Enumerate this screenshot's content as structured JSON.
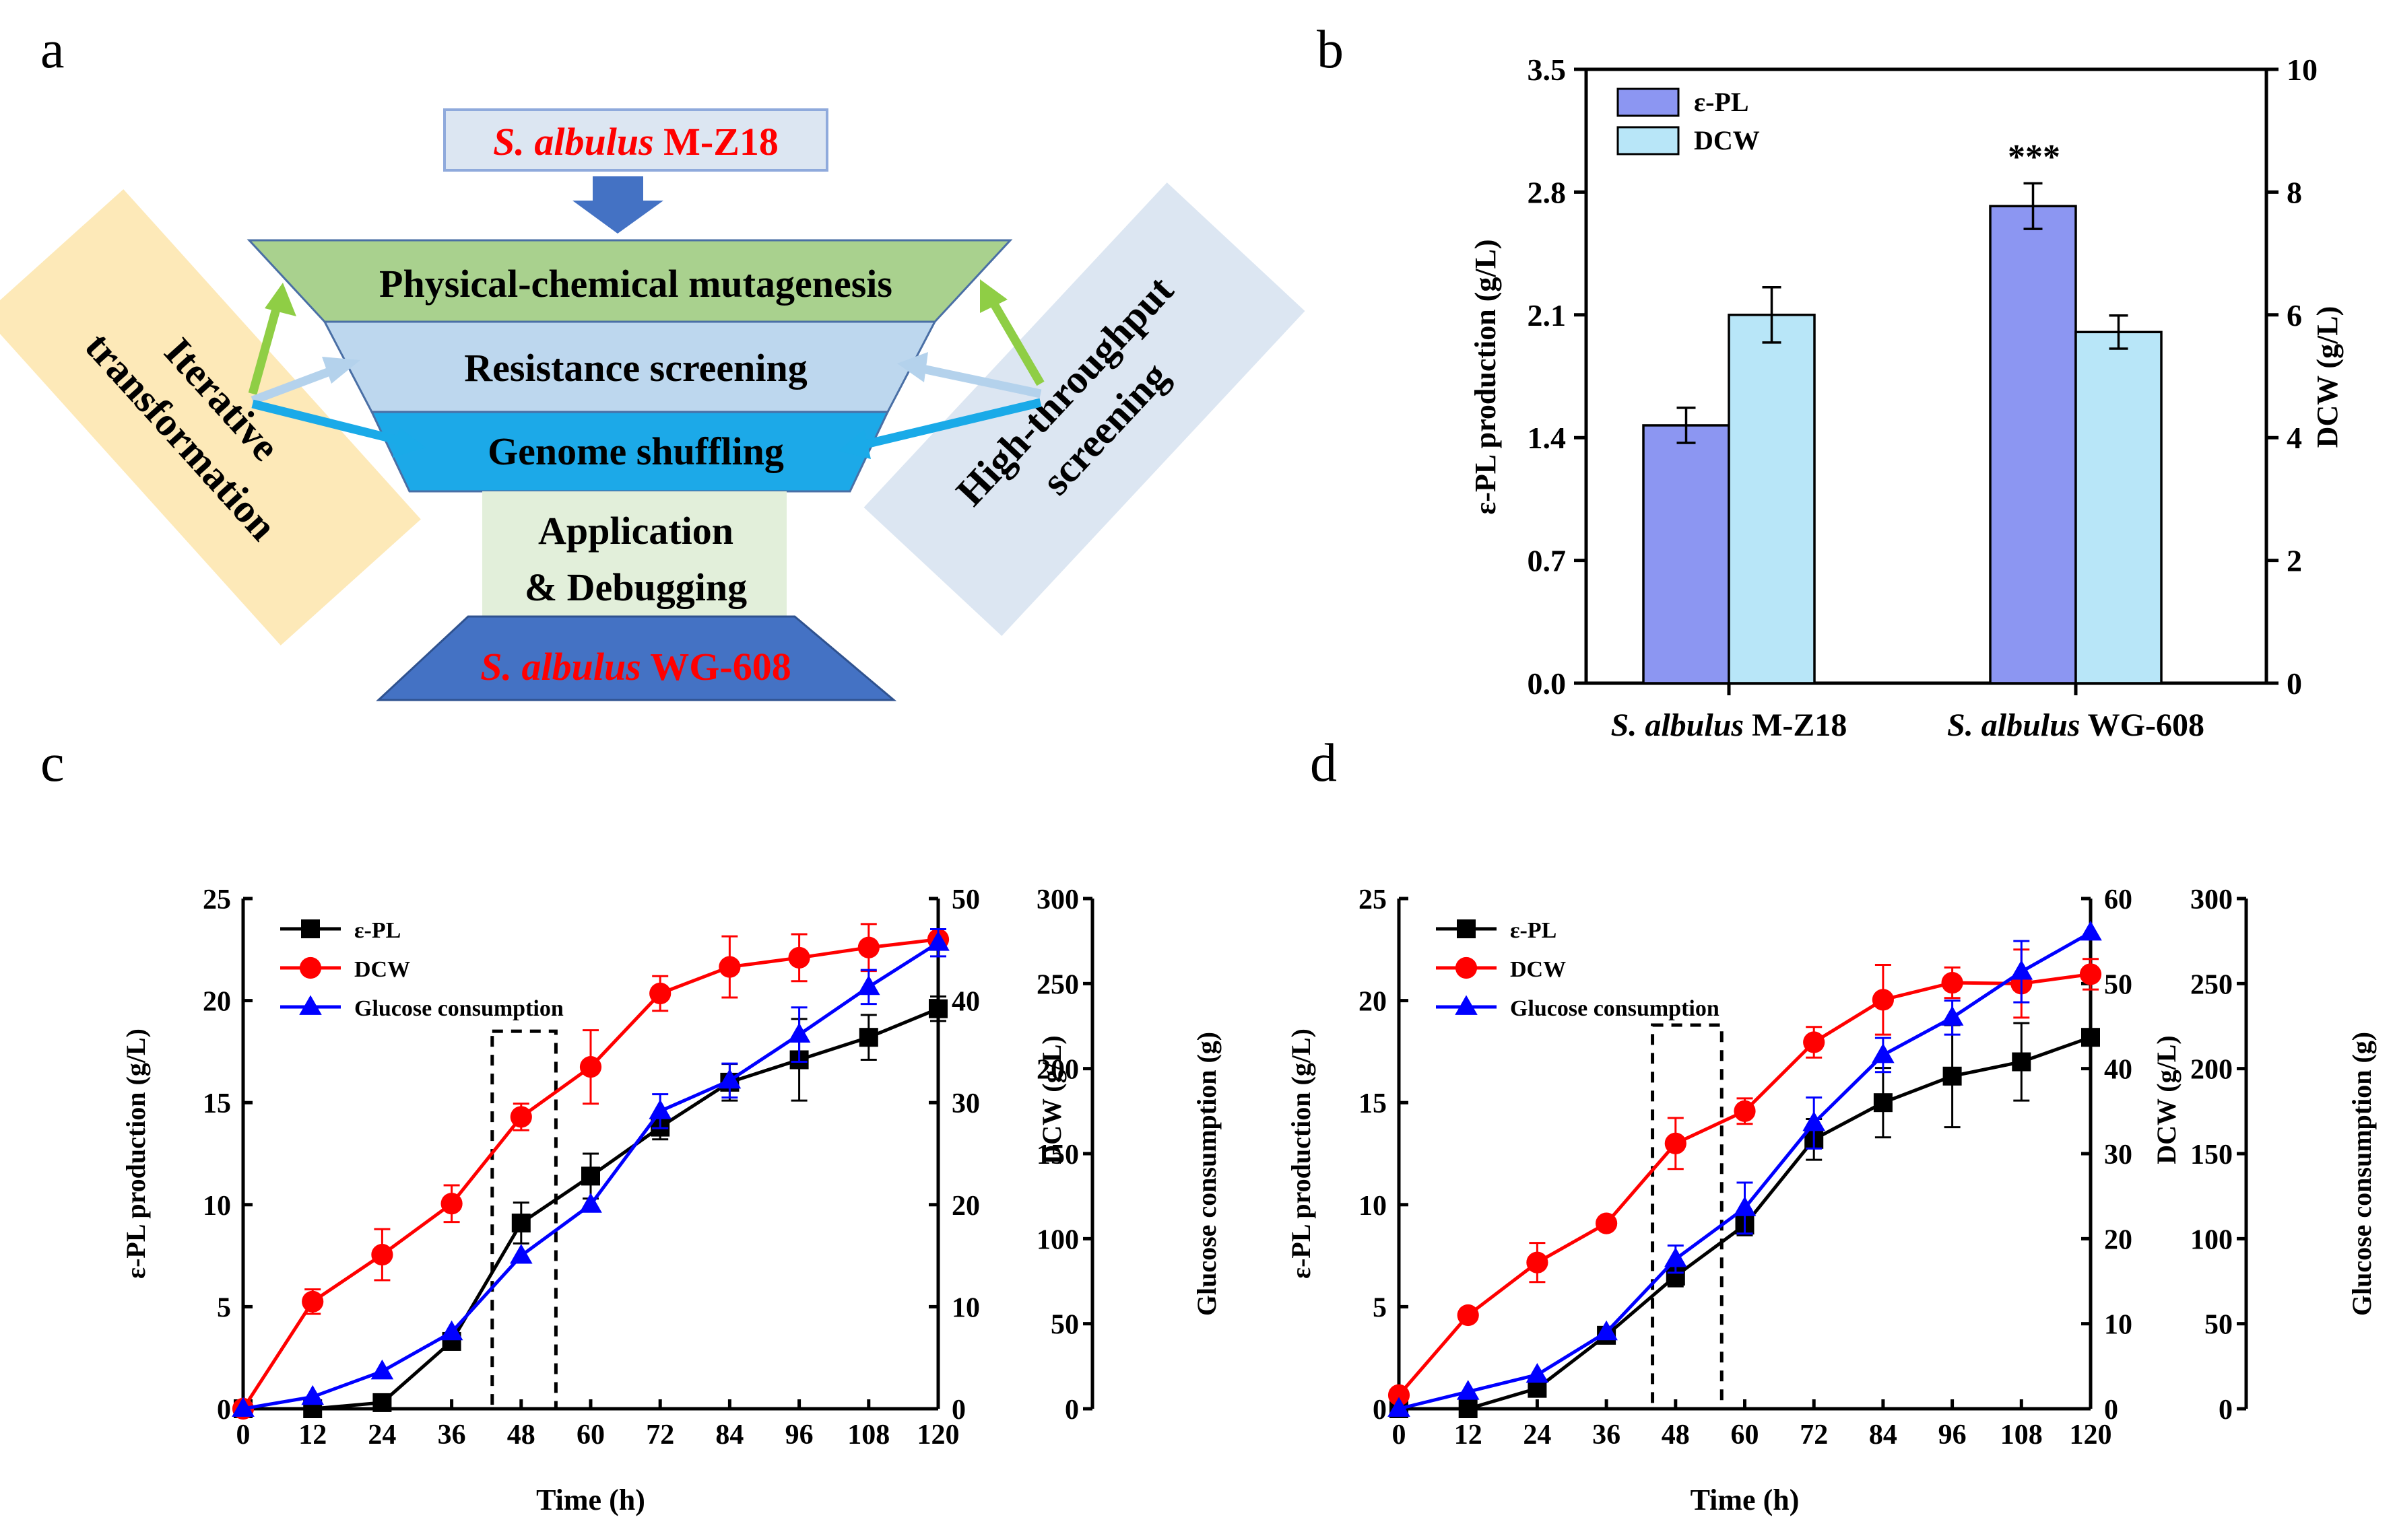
{
  "panels": {
    "a": {
      "letter": "a",
      "top_box": {
        "italic": "S. albulus",
        "rest": " M-Z18"
      },
      "levels": [
        "Physical-chemical mutagenesis",
        "Resistance screening",
        "Genome shuffling",
        "Application",
        "& Debugging"
      ],
      "bottom_box": {
        "italic": "S. albulus",
        "rest": " WG-608"
      },
      "left_note": [
        "Iterative",
        "transformation"
      ],
      "right_note": [
        "High-throughput",
        "screening"
      ],
      "colors": {
        "strain_red": "#ff0000",
        "level1": "#a9d18e",
        "level2": "#bdd7ee",
        "level3": "#1ca9e8",
        "level4": "#e2efda",
        "level5": "#4472c4",
        "left_note_bg": "#fde9b8",
        "right_note_bg": "#dce6f2",
        "arrow_green": "#8fce45",
        "arrow_lightblue": "#b4d2ec",
        "arrow_cyan": "#1aaae8",
        "arrow_down": "#4472c4"
      }
    },
    "b": {
      "letter": "b"
    },
    "c": {
      "letter": "c"
    },
    "d": {
      "letter": "d"
    }
  },
  "chart_data": [
    {
      "panel": "b",
      "type": "bar",
      "categories": [
        {
          "italic": "S. albulus",
          "rest": " M-Z18"
        },
        {
          "italic": "S. albulus",
          "rest": " WG-608"
        }
      ],
      "series": [
        {
          "name": "ε-PL",
          "axis": "left",
          "color": "#8c96f2",
          "values": [
            1.47,
            2.72
          ],
          "errors": [
            0.1,
            0.13
          ]
        },
        {
          "name": "DCW",
          "axis": "right",
          "color": "#b8e6f8",
          "values": [
            6.0,
            5.72
          ],
          "errors": [
            0.45,
            0.27
          ]
        }
      ],
      "ylabel": "ε-PL production (g/L)",
      "ylabel_right": "DCW (g/L)",
      "ylim": [
        0,
        3.5
      ],
      "ylim_right": [
        0,
        10
      ],
      "yticks": [
        "0.0",
        "0.7",
        "1.4",
        "2.1",
        "2.8",
        "3.5"
      ],
      "yticks_right": [
        "0",
        "2",
        "4",
        "6",
        "8",
        "10"
      ],
      "annotation": "***",
      "legend": "top-left"
    },
    {
      "panel": "c",
      "type": "line",
      "xlabel": "Time (h)",
      "x": [
        0,
        12,
        24,
        36,
        48,
        60,
        72,
        84,
        96,
        108,
        120
      ],
      "xlim": [
        0,
        120
      ],
      "ylabel": "ε-PL production (g/L)",
      "ylabel_right1": "DCW (g/L)",
      "ylabel_right2": "Glucose consumption (g)",
      "ylim": [
        0,
        25
      ],
      "ylim_right1": [
        0,
        50
      ],
      "ylim_right2": [
        0,
        300
      ],
      "yticks": [
        0,
        5,
        10,
        15,
        20,
        25
      ],
      "yticks_right1": [
        0,
        10,
        20,
        30,
        40,
        50
      ],
      "yticks_right2": [
        0,
        50,
        100,
        150,
        200,
        250,
        300
      ],
      "legend": "top-left",
      "highlight_box": {
        "x": [
          43,
          54
        ],
        "y": [
          0,
          18.5
        ]
      },
      "series": [
        {
          "name": "ε-PL",
          "axis": "left",
          "marker": "square",
          "color": "#000000",
          "values": [
            0,
            0,
            0.3,
            3.3,
            9.1,
            11.4,
            13.8,
            16.0,
            17.1,
            18.2,
            19.6
          ],
          "errors": [
            0,
            0,
            0,
            0.3,
            1.0,
            1.1,
            0.6,
            0.9,
            2.0,
            1.1,
            0.6
          ]
        },
        {
          "name": "DCW",
          "axis": "right1",
          "marker": "circle",
          "color": "#ff0000",
          "values": [
            0,
            10.5,
            15.1,
            20.1,
            28.6,
            33.5,
            40.7,
            43.3,
            44.2,
            45.2,
            46.0
          ],
          "errors": [
            0,
            1.2,
            2.5,
            1.8,
            1.3,
            3.6,
            1.7,
            3.0,
            2.3,
            2.3,
            0
          ]
        },
        {
          "name": "Glucose consumption",
          "axis": "right2",
          "marker": "triangle",
          "color": "#0000ff",
          "values": [
            0,
            7,
            22,
            45,
            90,
            120,
            175,
            193,
            220,
            248,
            274
          ],
          "errors": [
            0,
            0,
            0,
            0,
            0,
            0,
            10,
            10,
            16,
            10,
            8
          ]
        }
      ]
    },
    {
      "panel": "d",
      "type": "line",
      "xlabel": "Time (h)",
      "x": [
        0,
        12,
        24,
        36,
        48,
        60,
        72,
        84,
        96,
        108,
        120
      ],
      "xlim": [
        0,
        120
      ],
      "ylabel": "ε-PL production (g/L)",
      "ylabel_right1": "DCW (g/L)",
      "ylabel_right2": "Glucose consumption (g)",
      "ylim": [
        0,
        25
      ],
      "ylim_right1": [
        0,
        60
      ],
      "ylim_right2": [
        0,
        300
      ],
      "yticks": [
        0,
        5,
        10,
        15,
        20,
        25
      ],
      "yticks_right1": [
        0,
        10,
        20,
        30,
        40,
        50,
        60
      ],
      "yticks_right2": [
        0,
        50,
        100,
        150,
        200,
        250,
        300
      ],
      "legend": "top-left",
      "highlight_box": {
        "x": [
          44,
          56
        ],
        "y": [
          0,
          18.8
        ]
      },
      "series": [
        {
          "name": "ε-PL",
          "axis": "left",
          "marker": "square",
          "color": "#000000",
          "values": [
            0,
            0,
            1.0,
            3.6,
            6.5,
            9.0,
            13.2,
            15.0,
            16.3,
            17.0,
            18.2
          ],
          "errors": [
            0,
            0,
            0,
            0.3,
            0.5,
            0.5,
            1.0,
            1.7,
            2.5,
            1.9,
            0
          ]
        },
        {
          "name": "DCW",
          "axis": "right1",
          "marker": "circle",
          "color": "#ff0000",
          "values": [
            1.6,
            11.0,
            17.2,
            21.8,
            31.2,
            35.0,
            43.1,
            48.1,
            50.1,
            50.0,
            51.1
          ],
          "errors": [
            0,
            0,
            2.3,
            0,
            3.0,
            1.5,
            1.8,
            4.1,
            1.8,
            4.0,
            1.8
          ]
        },
        {
          "name": "Glucose consumption",
          "axis": "right2",
          "marker": "triangle",
          "color": "#0000ff",
          "values": [
            0,
            10,
            20,
            45,
            88,
            118,
            168,
            208,
            230,
            257,
            280
          ],
          "errors": [
            0,
            0,
            0,
            0,
            8,
            15,
            15,
            10,
            10,
            18,
            0
          ]
        }
      ]
    }
  ]
}
